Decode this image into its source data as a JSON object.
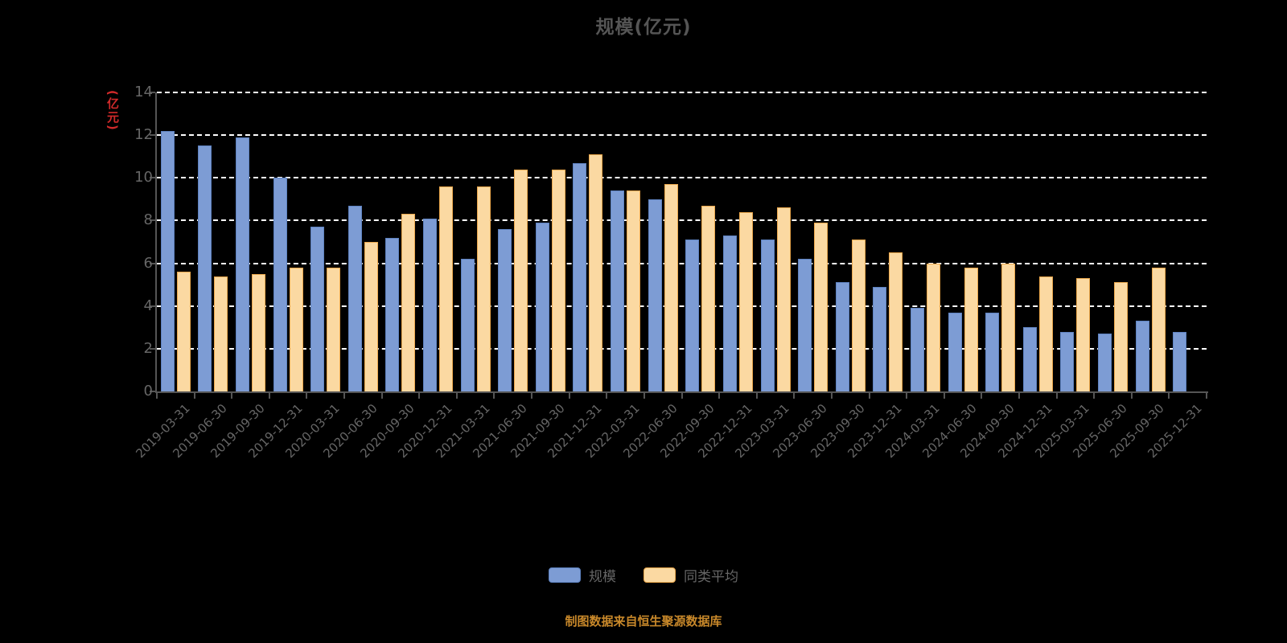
{
  "chart_data": {
    "type": "bar",
    "title": "规模(亿元)",
    "ylabel": "(亿元)",
    "ylim": [
      0,
      14
    ],
    "yticks": [
      0,
      2,
      4,
      6,
      8,
      10,
      12,
      14
    ],
    "grid": "dashed-horizontal",
    "legend_position": "bottom",
    "categories": [
      "2019-03-31",
      "2019-06-30",
      "2019-09-30",
      "2019-12-31",
      "2020-03-31",
      "2020-06-30",
      "2020-09-30",
      "2020-12-31",
      "2021-03-31",
      "2021-06-30",
      "2021-09-30",
      "2021-12-31",
      "2022-03-31",
      "2022-06-30",
      "2022-09-30",
      "2022-12-31",
      "2023-03-31",
      "2023-06-30",
      "2023-09-30",
      "2023-12-31",
      "2024-03-31",
      "2024-06-30",
      "2024-09-30",
      "2024-12-31",
      "2025-03-31",
      "2025-06-30",
      "2025-09-30",
      "2025-12-31"
    ],
    "series": [
      {
        "name": "规模",
        "fill": "#7d9cd4",
        "border": "#5e82c0",
        "values": [
          12.2,
          11.5,
          11.9,
          10.0,
          7.7,
          8.7,
          7.2,
          8.1,
          6.2,
          7.6,
          7.9,
          10.7,
          9.4,
          9.0,
          7.1,
          7.3,
          7.1,
          6.2,
          5.1,
          4.9,
          3.9,
          3.7,
          3.7,
          3.0,
          2.8,
          2.7,
          3.3,
          2.8
        ]
      },
      {
        "name": "同类平均",
        "fill": "#fbd9a2",
        "border": "#eca84c",
        "values": [
          5.6,
          5.4,
          5.5,
          5.8,
          5.8,
          7.0,
          8.3,
          9.6,
          9.6,
          10.4,
          10.4,
          11.1,
          9.4,
          9.7,
          8.7,
          8.4,
          8.6,
          7.9,
          7.1,
          6.5,
          6.0,
          5.8,
          6.0,
          5.4,
          5.3,
          5.1,
          5.8,
          null
        ]
      }
    ]
  },
  "colors": {
    "background": "#000000",
    "gridline": "#ffffff",
    "axis": "#555555",
    "tick_text": "#666666",
    "title_text": "#555555",
    "y_unit_text": "#d02a2a",
    "footer_text": "#c8882a"
  },
  "footer": {
    "text": "制图数据来自恒生聚源数据库"
  }
}
